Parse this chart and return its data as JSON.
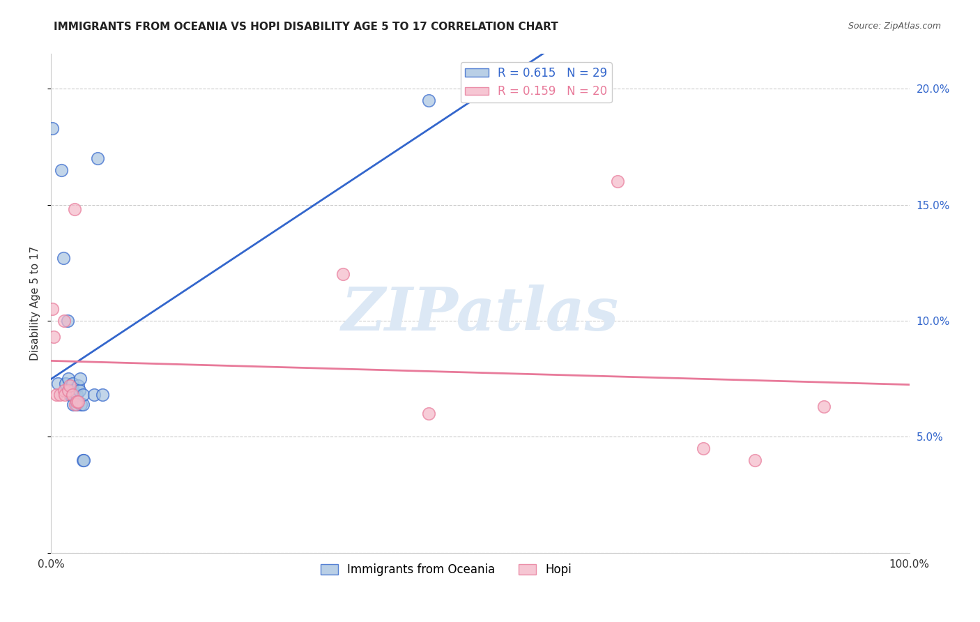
{
  "title": "IMMIGRANTS FROM OCEANIA VS HOPI DISABILITY AGE 5 TO 17 CORRELATION CHART",
  "source": "Source: ZipAtlas.com",
  "xlabel": "",
  "ylabel": "Disability Age 5 to 17",
  "legend_label1": "Immigrants from Oceania",
  "legend_label2": "Hopi",
  "r1": 0.615,
  "n1": 29,
  "r2": 0.159,
  "n2": 20,
  "xlim": [
    0,
    1.0
  ],
  "ylim": [
    0,
    0.215
  ],
  "xticks": [
    0.0,
    0.2,
    0.4,
    0.6,
    0.8,
    1.0
  ],
  "xticklabels": [
    "0.0%",
    "",
    "",
    "",
    "",
    "100.0%"
  ],
  "yticks": [
    0.0,
    0.05,
    0.1,
    0.15,
    0.2
  ],
  "right_yticklabels": [
    "",
    "5.0%",
    "10.0%",
    "15.0%",
    "20.0%"
  ],
  "color_blue": "#a8c4e0",
  "color_pink": "#f4b8c8",
  "line_blue": "#3366CC",
  "line_pink": "#e87a9a",
  "background": "#ffffff",
  "grid_color": "#cccccc",
  "blue_points": [
    [
      0.001,
      0.183
    ],
    [
      0.008,
      0.073
    ],
    [
      0.012,
      0.165
    ],
    [
      0.014,
      0.127
    ],
    [
      0.017,
      0.073
    ],
    [
      0.019,
      0.1
    ],
    [
      0.02,
      0.075
    ],
    [
      0.021,
      0.07
    ],
    [
      0.022,
      0.07
    ],
    [
      0.022,
      0.068
    ],
    [
      0.023,
      0.068
    ],
    [
      0.025,
      0.073
    ],
    [
      0.026,
      0.07
    ],
    [
      0.026,
      0.064
    ],
    [
      0.027,
      0.068
    ],
    [
      0.03,
      0.068
    ],
    [
      0.03,
      0.064
    ],
    [
      0.031,
      0.072
    ],
    [
      0.033,
      0.07
    ],
    [
      0.034,
      0.075
    ],
    [
      0.035,
      0.064
    ],
    [
      0.037,
      0.064
    ],
    [
      0.037,
      0.068
    ],
    [
      0.037,
      0.04
    ],
    [
      0.038,
      0.04
    ],
    [
      0.05,
      0.068
    ],
    [
      0.054,
      0.17
    ],
    [
      0.06,
      0.068
    ],
    [
      0.44,
      0.195
    ]
  ],
  "pink_points": [
    [
      0.001,
      0.105
    ],
    [
      0.003,
      0.093
    ],
    [
      0.006,
      0.068
    ],
    [
      0.01,
      0.068
    ],
    [
      0.015,
      0.1
    ],
    [
      0.015,
      0.07
    ],
    [
      0.016,
      0.068
    ],
    [
      0.02,
      0.07
    ],
    [
      0.022,
      0.072
    ],
    [
      0.025,
      0.068
    ],
    [
      0.027,
      0.148
    ],
    [
      0.028,
      0.064
    ],
    [
      0.03,
      0.065
    ],
    [
      0.031,
      0.065
    ],
    [
      0.34,
      0.12
    ],
    [
      0.44,
      0.06
    ],
    [
      0.66,
      0.16
    ],
    [
      0.76,
      0.045
    ],
    [
      0.82,
      0.04
    ],
    [
      0.9,
      0.063
    ]
  ],
  "watermark": "ZIPatlas",
  "watermark_color": "#dce8f5"
}
